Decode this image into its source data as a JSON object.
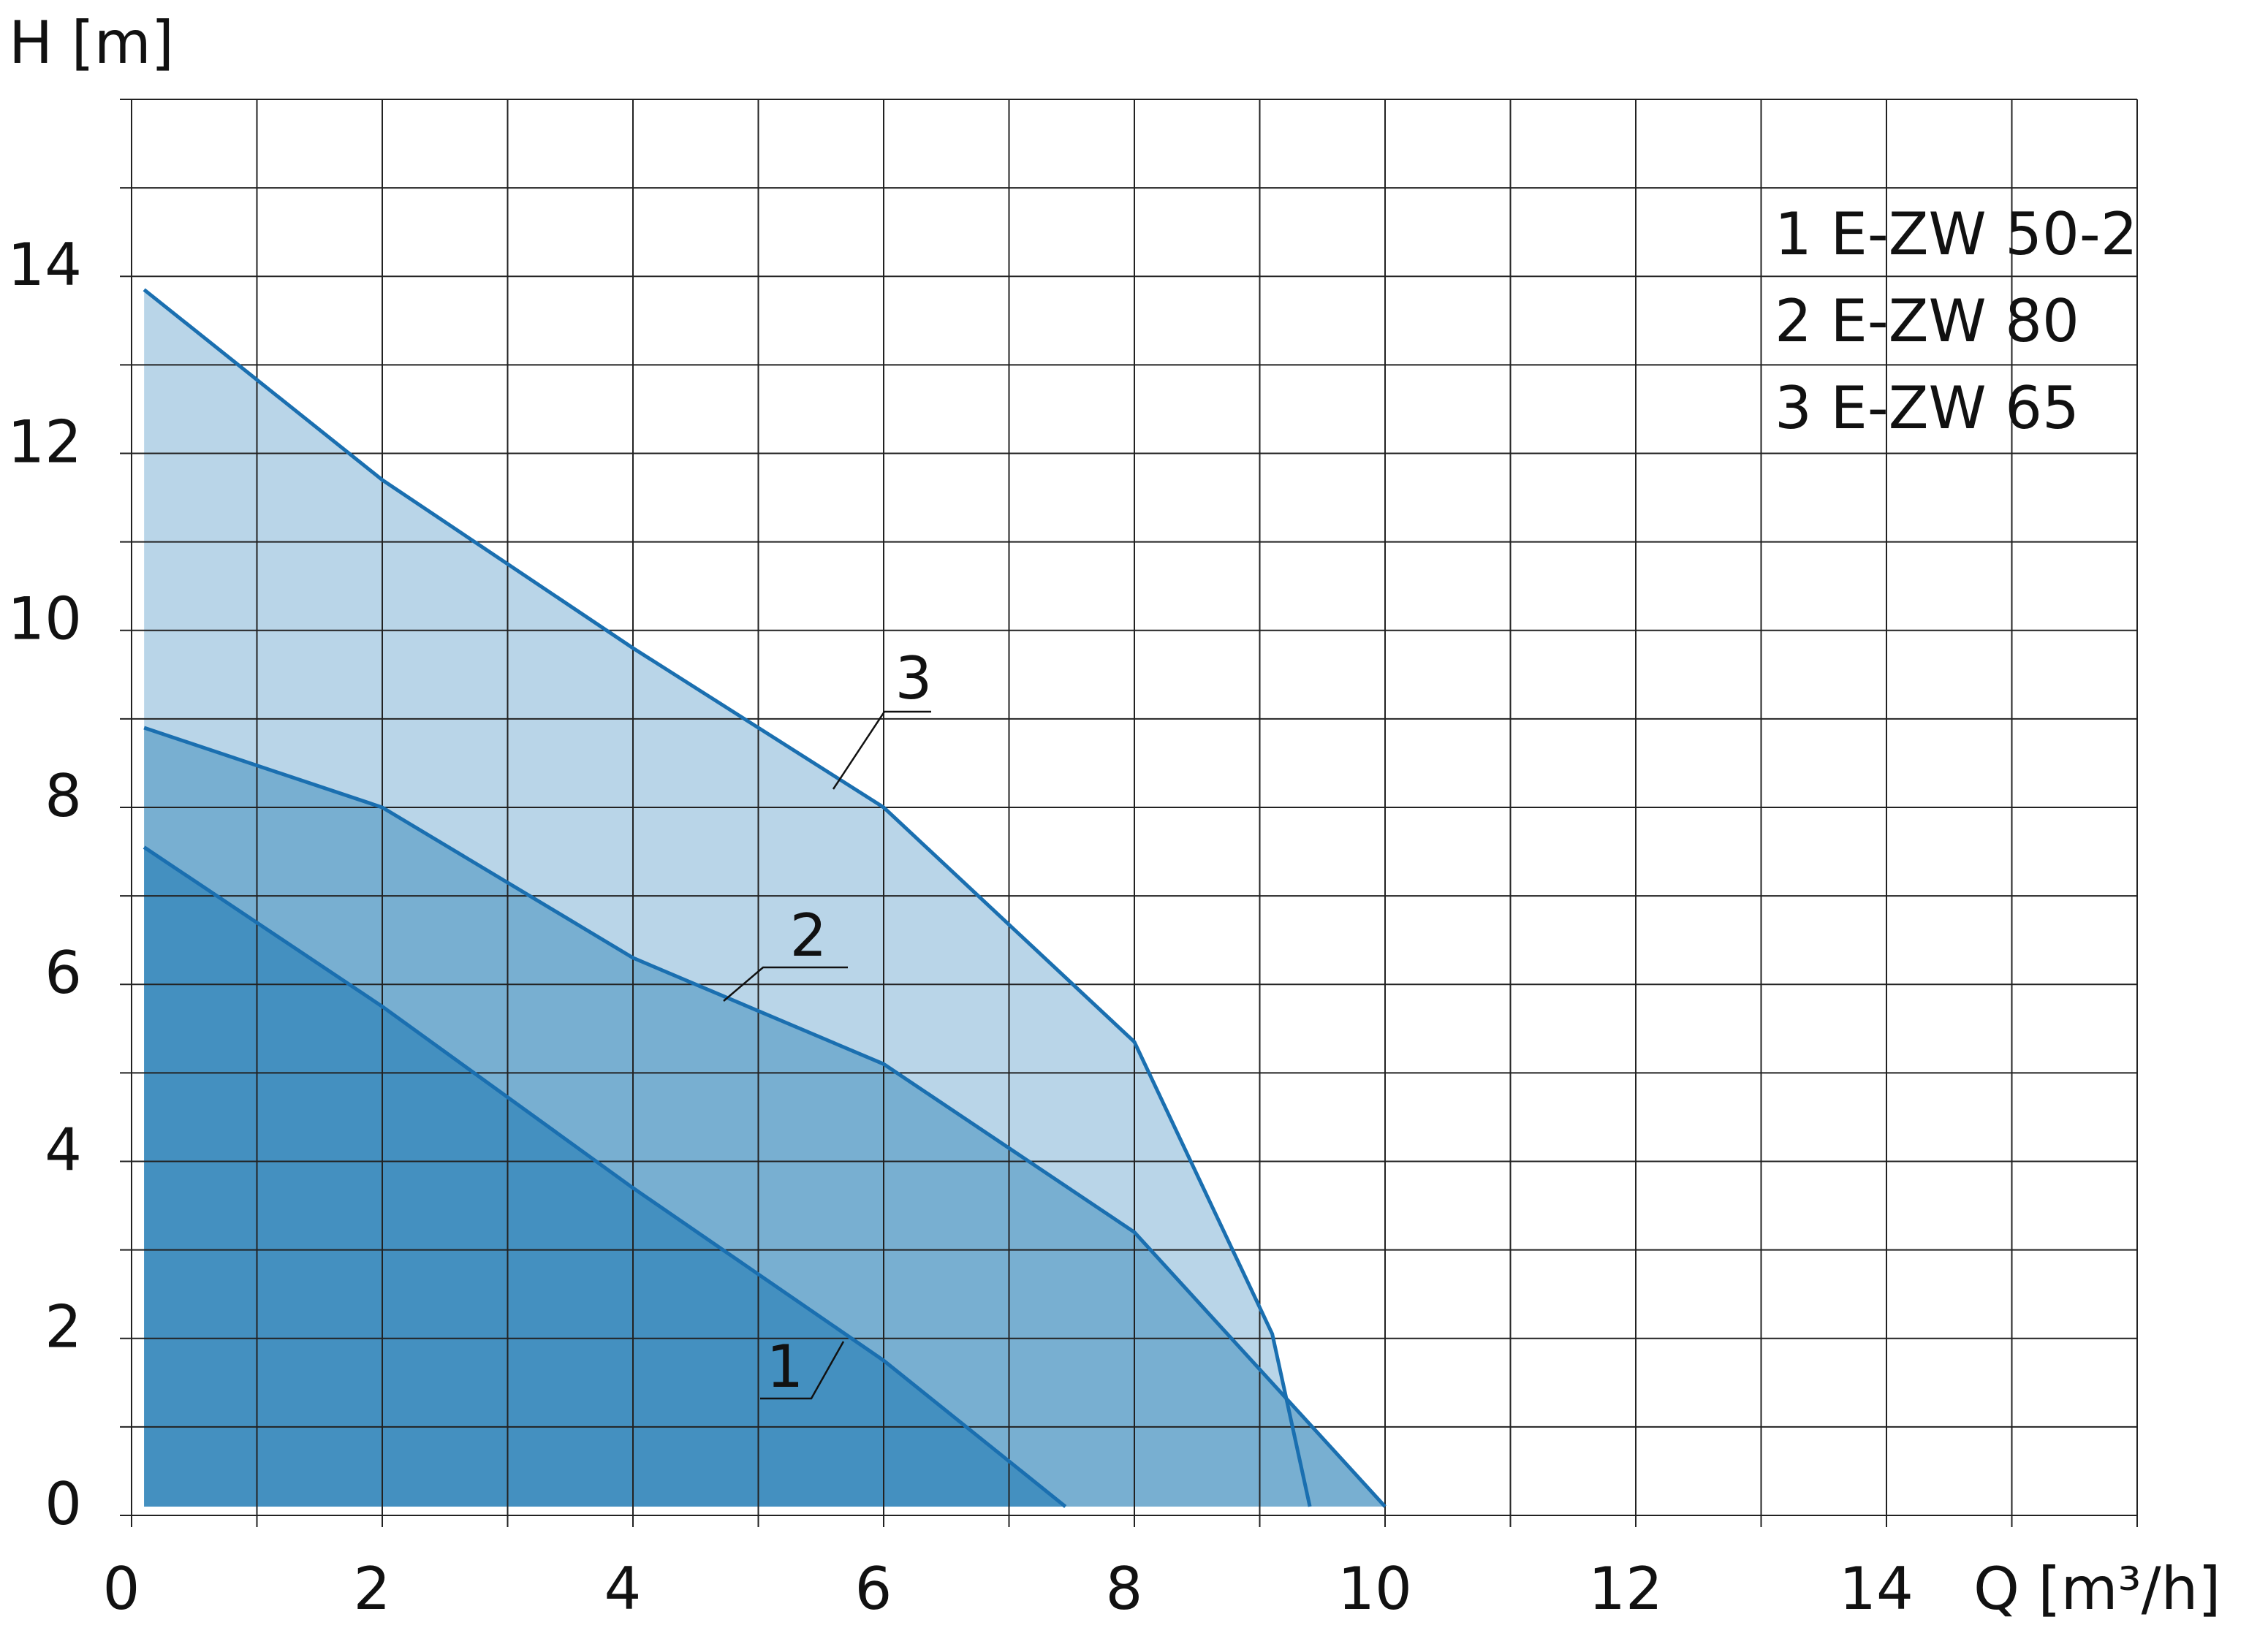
{
  "chart_data": {
    "type": "area",
    "y_label": "H [m]",
    "x_label": "Q [m³/h]",
    "xlim": [
      0,
      16
    ],
    "ylim": [
      0,
      16
    ],
    "xticks": [
      0,
      2,
      4,
      6,
      8,
      10,
      12,
      14
    ],
    "yticks": [
      0,
      2,
      4,
      6,
      8,
      10,
      12,
      14
    ],
    "xgrid": [
      0,
      1,
      2,
      3,
      4,
      5,
      6,
      7,
      8,
      9,
      10,
      11,
      12,
      13,
      14,
      15,
      16
    ],
    "ygrid": [
      0,
      1,
      2,
      3,
      4,
      5,
      6,
      7,
      8,
      9,
      10,
      11,
      12,
      13,
      14,
      15,
      16
    ],
    "line_color": "#1a6fb0",
    "series": [
      {
        "name": "1 E-ZW 50-2",
        "label": "1",
        "color": "#4490c0",
        "x": [
          0.1,
          2,
          4,
          6,
          7.45
        ],
        "values": [
          7.55,
          5.75,
          3.7,
          1.75,
          0.1
        ]
      },
      {
        "name": "2 E-ZW 80",
        "label": "2",
        "color": "#78afd1",
        "x": [
          0.1,
          2,
          4,
          6,
          8,
          10
        ],
        "values": [
          8.9,
          8,
          6.3,
          5.1,
          3.2,
          0.1
        ]
      },
      {
        "name": "3 E-ZW 65",
        "label": "3",
        "color": "#b9d5e8",
        "x": [
          0.1,
          2,
          4,
          6,
          8,
          9.1,
          9.4
        ],
        "values": [
          13.85,
          11.7,
          9.8,
          8,
          5.35,
          2.05,
          0.1
        ]
      }
    ]
  }
}
